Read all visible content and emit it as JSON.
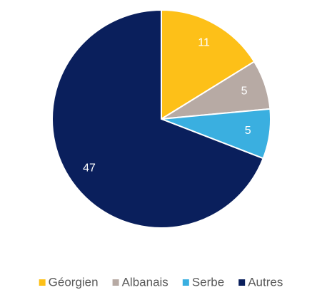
{
  "chart_data": {
    "type": "pie",
    "categories": [
      "Géorgien",
      "Albanais",
      "Serbe",
      "Autres"
    ],
    "values": [
      11,
      5,
      5,
      47
    ],
    "colors": [
      "#fdc018",
      "#b7aaa4",
      "#3aafe0",
      "#0a1f5c"
    ],
    "legend": "bottom"
  }
}
